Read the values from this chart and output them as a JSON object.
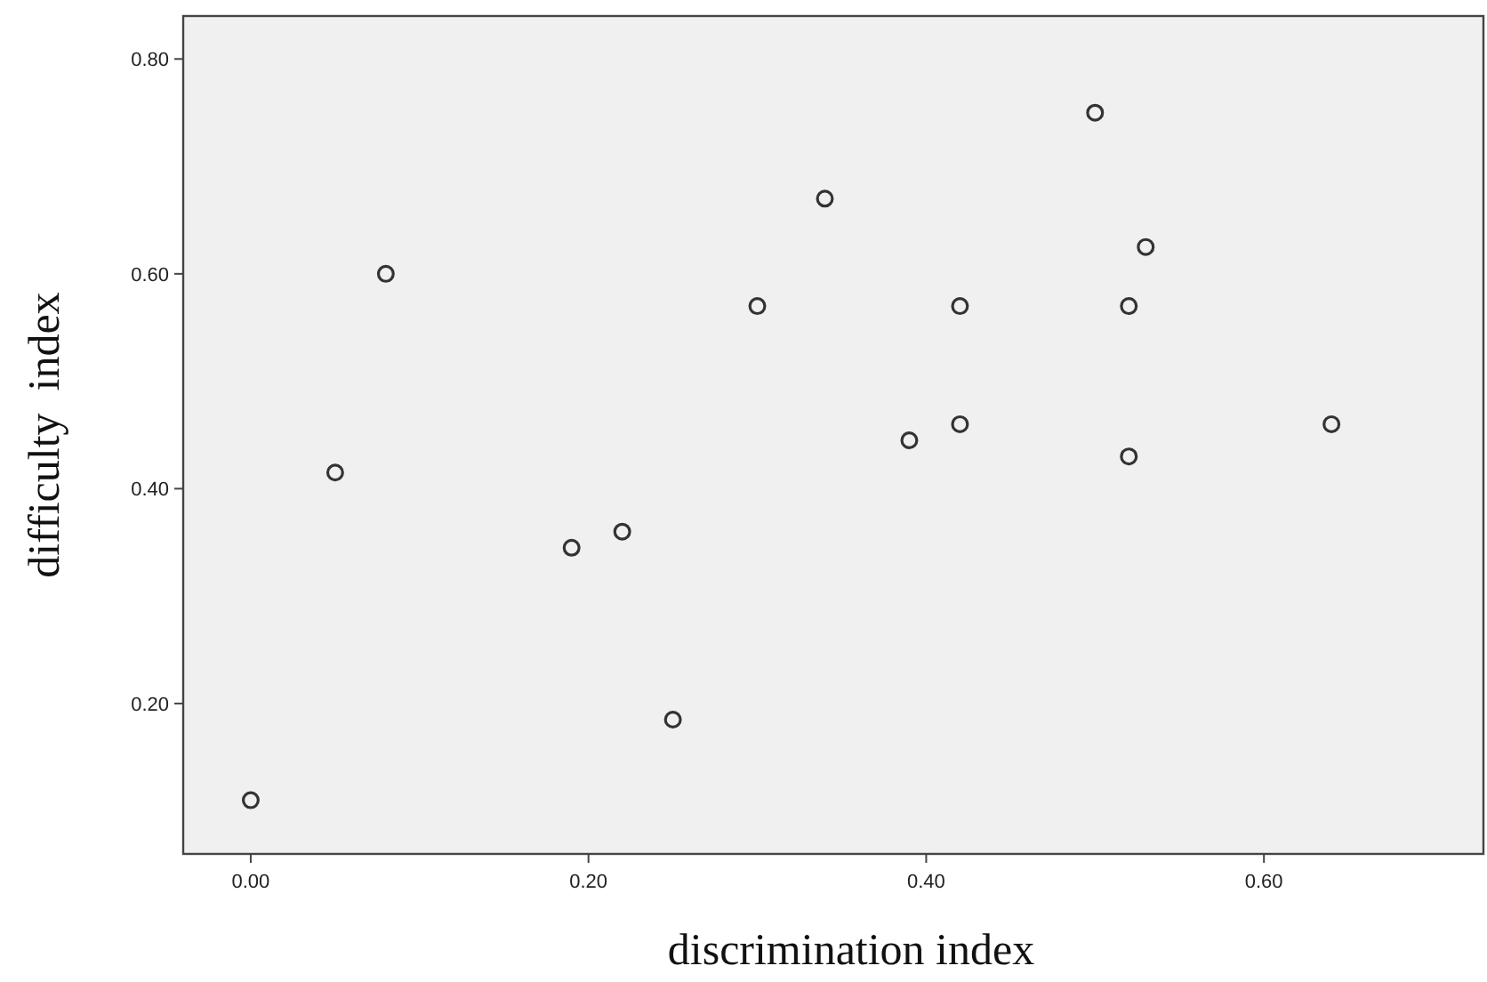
{
  "chart_data": {
    "type": "scatter",
    "xlabel": "discrimination index",
    "ylabel": "difficulty  index",
    "x": [
      0,
      0.05,
      0.08,
      0.19,
      0.22,
      0.25,
      0.3,
      0.34,
      0.39,
      0.42,
      0.42,
      0.5,
      0.52,
      0.52,
      0.53,
      0.64
    ],
    "values": [
      0.11,
      0.415,
      0.6,
      0.345,
      0.36,
      0.185,
      0.57,
      0.67,
      0.445,
      0.46,
      0.57,
      0.75,
      0.57,
      0.43,
      0.625,
      0.46
    ],
    "color": "#333333",
    "marker": "circle",
    "xlim": [
      -0.04,
      0.73
    ],
    "ylim": [
      0.06,
      0.84
    ],
    "xticks": [
      {
        "value": 0,
        "label": "0.00"
      },
      {
        "value": 0.2,
        "label": "0.20"
      },
      {
        "value": 0.4,
        "label": "0.40"
      },
      {
        "value": 0.6,
        "label": "0.60"
      }
    ],
    "yticks": [
      {
        "value": 0.2,
        "label": "0.20"
      },
      {
        "value": 0.4,
        "label": "0.40"
      },
      {
        "value": 0.6,
        "label": "0.60"
      },
      {
        "value": 0.8,
        "label": "0.80"
      }
    ]
  }
}
